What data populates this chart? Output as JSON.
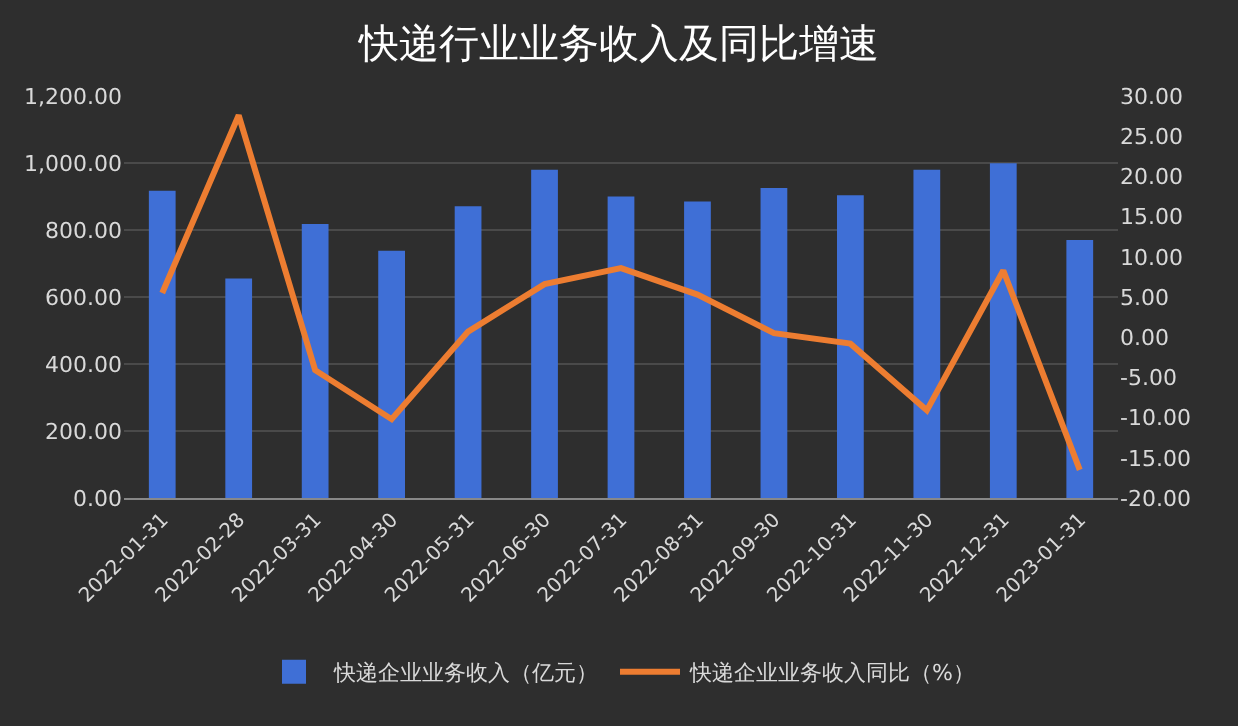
{
  "chart_data": {
    "type": "bar",
    "title": "快递行业业务收入及同比增速",
    "categories": [
      "2022-01-31",
      "2022-02-28",
      "2022-03-31",
      "2022-04-30",
      "2022-05-31",
      "2022-06-30",
      "2022-07-31",
      "2022-08-31",
      "2022-09-30",
      "2022-10-31",
      "2022-11-30",
      "2022-12-31",
      "2023-01-31"
    ],
    "series": [
      {
        "name": "快递企业业务收入（亿元）",
        "color": "#3f6fd6",
        "values": [
          917,
          655,
          818,
          738,
          871,
          980,
          900,
          885,
          925,
          904,
          980,
          999,
          770
        ]
      },
      {
        "name": "快递企业业务收入同比（%）",
        "color": "#ed7d31",
        "type": "line",
        "axis": "y2",
        "values": [
          5.5,
          27.6,
          -4.1,
          -10.2,
          0.7,
          6.6,
          8.6,
          5.3,
          0.5,
          -0.8,
          -9.1,
          8.3,
          -16.5
        ]
      }
    ],
    "ylim": [
      0,
      1200
    ],
    "yticks": [
      {
        "value": 0,
        "label": "0.00"
      },
      {
        "value": 200,
        "label": "200.00"
      },
      {
        "value": 400,
        "label": "400.00"
      },
      {
        "value": 600,
        "label": "600.00"
      },
      {
        "value": 800,
        "label": "800.00"
      },
      {
        "value": 1000,
        "label": "1,000.00"
      },
      {
        "value": 1200,
        "label": "1,200.00"
      }
    ],
    "y2lim": [
      -20,
      30
    ],
    "y2ticks": [
      {
        "value": -20,
        "label": "-20.00"
      },
      {
        "value": -15,
        "label": "-15.00"
      },
      {
        "value": -10,
        "label": "-10.00"
      },
      {
        "value": -5,
        "label": "-5.00"
      },
      {
        "value": 0,
        "label": "0.00"
      },
      {
        "value": 5,
        "label": "5.00"
      },
      {
        "value": 10,
        "label": "10.00"
      },
      {
        "value": 15,
        "label": "15.00"
      },
      {
        "value": 20,
        "label": "20.00"
      },
      {
        "value": 25,
        "label": "25.00"
      },
      {
        "value": 30,
        "label": "30.00"
      }
    ],
    "grid": "y",
    "legend": "bottom",
    "marker": "none",
    "line_style": "solid"
  }
}
